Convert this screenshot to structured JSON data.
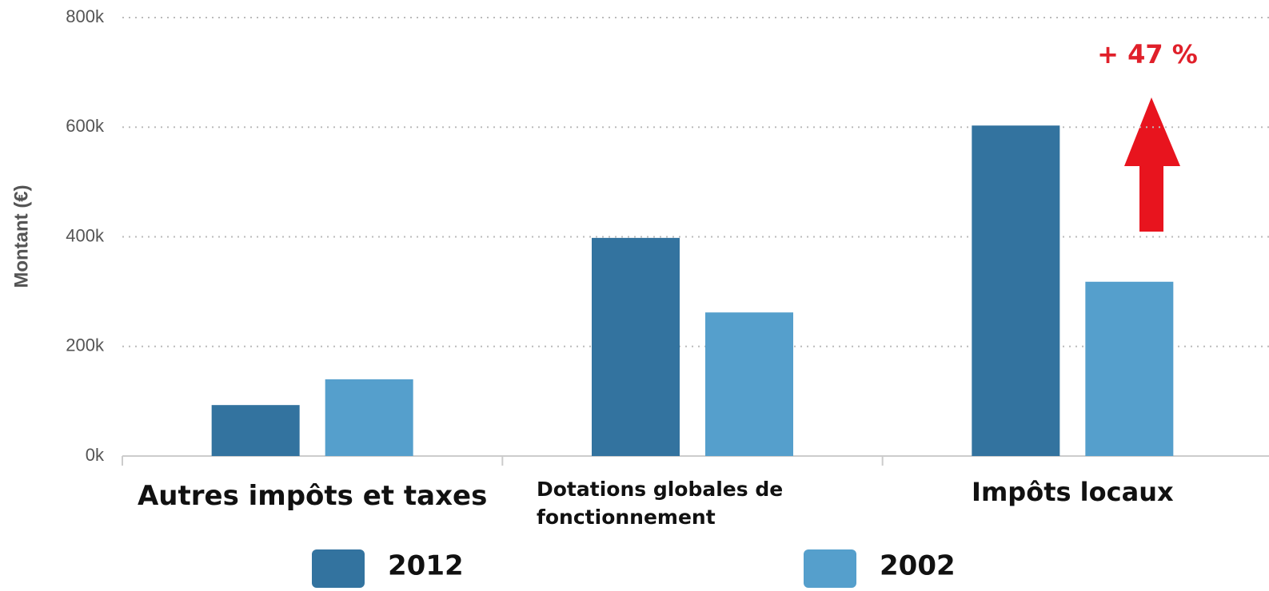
{
  "chart_data": {
    "type": "bar",
    "y_label": "Montant (€)",
    "categories": [
      "Autres impôts et taxes",
      "Dotations globales de fonctionnement",
      "Impôts locaux"
    ],
    "series": [
      {
        "name": "2012",
        "color": "#33739f",
        "values": [
          93000,
          398000,
          603000
        ]
      },
      {
        "name": "2002",
        "color": "#559fcc",
        "values": [
          140000,
          262000,
          318000
        ]
      }
    ],
    "ylim": [
      0,
      800000
    ],
    "yticks": [
      {
        "value": 0,
        "label": "0k"
      },
      {
        "value": 200000,
        "label": "200k"
      },
      {
        "value": 400000,
        "label": "400k"
      },
      {
        "value": 600000,
        "label": "600k"
      },
      {
        "value": 800000,
        "label": "800k"
      }
    ],
    "grid": true,
    "annotation": "+ 47 %"
  }
}
